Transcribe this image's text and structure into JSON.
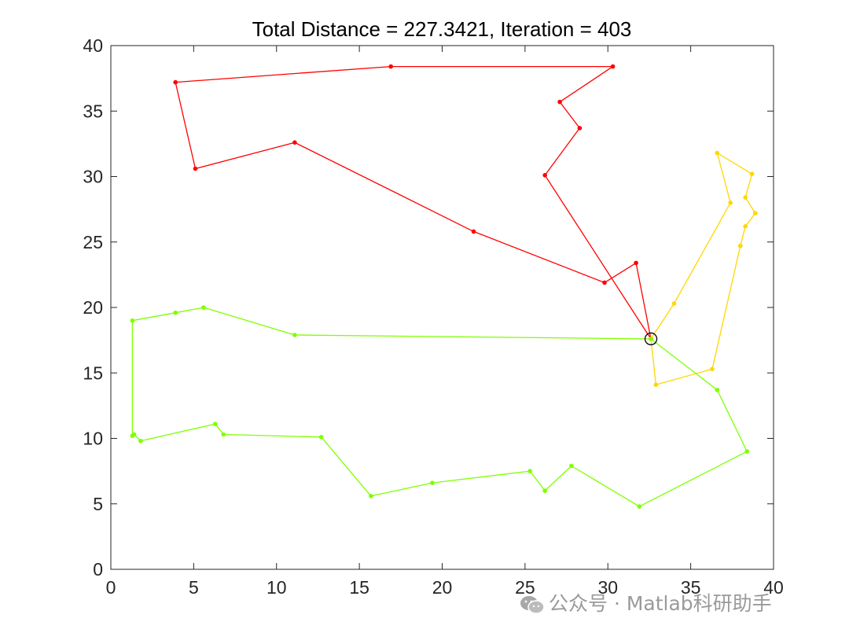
{
  "chart_data": {
    "type": "line",
    "title": "Total Distance = 227.3421, Iteration = 403",
    "xlabel": "",
    "ylabel": "",
    "xlim": [
      0,
      40
    ],
    "ylim": [
      0,
      40
    ],
    "xticks": [
      "0",
      "5",
      "10",
      "15",
      "20",
      "25",
      "30",
      "35",
      "40"
    ],
    "yticks": [
      "0",
      "5",
      "10",
      "15",
      "20",
      "25",
      "30",
      "35",
      "40"
    ],
    "grid": false,
    "depot": {
      "x": 32.6,
      "y": 17.6
    },
    "series": [
      {
        "color": "#ff0000",
        "points": [
          [
            32.6,
            17.6
          ],
          [
            31.7,
            23.4
          ],
          [
            29.8,
            21.9
          ],
          [
            21.9,
            25.8
          ],
          [
            11.1,
            32.6
          ],
          [
            5.1,
            30.6
          ],
          [
            3.9,
            37.2
          ],
          [
            16.9,
            38.4
          ],
          [
            30.3,
            38.4
          ],
          [
            27.1,
            35.7
          ],
          [
            28.3,
            33.7
          ],
          [
            26.2,
            30.1
          ],
          [
            32.6,
            17.6
          ]
        ]
      },
      {
        "color": "#ffd700",
        "points": [
          [
            32.6,
            17.6
          ],
          [
            34.0,
            20.3
          ],
          [
            37.4,
            28.0
          ],
          [
            36.6,
            31.8
          ],
          [
            38.7,
            30.2
          ],
          [
            38.3,
            28.4
          ],
          [
            38.9,
            27.2
          ],
          [
            38.3,
            26.2
          ],
          [
            38.0,
            24.7
          ],
          [
            36.3,
            15.3
          ],
          [
            32.9,
            14.1
          ],
          [
            32.6,
            17.6
          ]
        ]
      },
      {
        "color": "#7fff00",
        "points": [
          [
            32.6,
            17.6
          ],
          [
            11.1,
            17.9
          ],
          [
            5.6,
            20.0
          ],
          [
            3.9,
            19.6
          ],
          [
            1.3,
            19.0
          ],
          [
            1.3,
            10.2
          ],
          [
            1.4,
            10.3
          ],
          [
            1.8,
            9.8
          ],
          [
            6.3,
            11.1
          ],
          [
            6.8,
            10.3
          ],
          [
            12.7,
            10.1
          ],
          [
            15.7,
            5.6
          ],
          [
            19.4,
            6.6
          ],
          [
            25.3,
            7.5
          ],
          [
            26.2,
            6.0
          ],
          [
            27.8,
            7.9
          ],
          [
            31.9,
            4.8
          ],
          [
            38.4,
            9.0
          ],
          [
            36.6,
            13.7
          ],
          [
            32.6,
            17.6
          ]
        ]
      }
    ]
  },
  "watermark": {
    "text": "公众号 · Matlab科研助手"
  }
}
